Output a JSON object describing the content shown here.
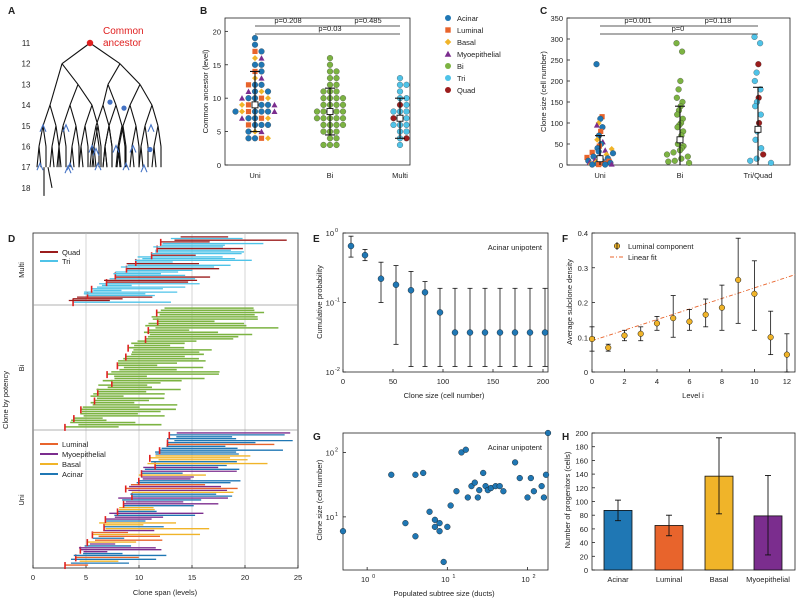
{
  "colors": {
    "acinar": "#1f77b4",
    "luminal": "#e8642c",
    "basal": "#f0b429",
    "myoepithelial": "#7b2d8e",
    "bi": "#7cb342",
    "tri": "#4fc3e8",
    "quad": "#9b1c1c",
    "tree_marker": "#4472c4",
    "ancestor": "#e02020"
  },
  "panels": {
    "A": {
      "letter": "A",
      "levels": [
        "11",
        "12",
        "13",
        "14",
        "15",
        "16",
        "17",
        "18"
      ],
      "ancestor_label": "Common ancestor"
    },
    "B": {
      "letter": "B",
      "ylabel": "Common ancestor (level)",
      "yticks": [
        "0",
        "5",
        "10",
        "15",
        "20"
      ],
      "categories": [
        "Uni",
        "Bi",
        "Multi"
      ],
      "pvalues": [
        "p=0.208",
        "p=0.03",
        "p=0.485"
      ],
      "legend": [
        "Acinar",
        "Luminal",
        "Basal",
        "Myoepithelial",
        "Bi",
        "Tri",
        "Quad"
      ]
    },
    "C": {
      "letter": "C",
      "ylabel": "Clone size (cell number)",
      "yticks": [
        "0",
        "50",
        "100",
        "150",
        "200",
        "250",
        "300",
        "350"
      ],
      "categories": [
        "Uni",
        "Bi",
        "Tri/Quad"
      ],
      "pvalues": [
        "p=0.001",
        "p=0",
        "p=0.118"
      ]
    },
    "D": {
      "letter": "D",
      "ylabel": "Clone by potency",
      "xlabel": "Clone span (levels)",
      "xticks": [
        "0",
        "5",
        "10",
        "15",
        "20",
        "25"
      ],
      "groups": [
        "Multi",
        "Bi",
        "Uni"
      ],
      "legend_multi": [
        "Quad",
        "Tri"
      ],
      "legend_uni": [
        "Luminal",
        "Myoepithelial",
        "Basal",
        "Acinar"
      ]
    },
    "E": {
      "letter": "E",
      "ylabel": "Cumulative probability",
      "xlabel": "Clone size (cell number)",
      "xticks": [
        "0",
        "50",
        "100",
        "150",
        "200"
      ],
      "yticks": [
        "10",
        "10",
        "10"
      ],
      "yexp": [
        "0",
        "-1",
        "-2"
      ],
      "label": "Acinar unipotent"
    },
    "F": {
      "letter": "F",
      "ylabel": "Average subclone density",
      "xlabel": "Level i",
      "xticks": [
        "0",
        "2",
        "4",
        "6",
        "8",
        "10",
        "12"
      ],
      "yticks": [
        "0",
        "0.1",
        "0.2",
        "0.3",
        "0.4"
      ],
      "legend": [
        "Luminal component",
        "Linear fit"
      ]
    },
    "G": {
      "letter": "G",
      "ylabel": "Clone size (cell number)",
      "xlabel": "Populated subtree size (ducts)",
      "xticks": [
        "10",
        "10",
        "10"
      ],
      "xexp": [
        "0",
        "1",
        "2"
      ],
      "yticks": [
        "10",
        "10"
      ],
      "yexp": [
        "1",
        "2"
      ],
      "label": "Acinar unipotent"
    },
    "H": {
      "letter": "H",
      "ylabel": "Number of progenitors (cells)",
      "yticks": [
        "0",
        "20",
        "40",
        "60",
        "80",
        "100",
        "120",
        "140",
        "160",
        "180",
        "200"
      ],
      "categories": [
        "Acinar",
        "Luminal",
        "Basal",
        "Myoepithelial"
      ]
    }
  },
  "chart_data": [
    {
      "panel": "B",
      "type": "scatter",
      "title": "",
      "xlabel": "",
      "ylabel": "Common ancestor (level)",
      "ylim": [
        0,
        22
      ],
      "categories": [
        "Uni",
        "Bi",
        "Multi"
      ],
      "summary": [
        {
          "category": "Uni",
          "median": 9,
          "q1": 7,
          "q3": 11,
          "mean": 9,
          "sd_low": 5,
          "sd_high": 14
        },
        {
          "category": "Bi",
          "median": 8,
          "q1": 7,
          "q3": 10,
          "mean": 8,
          "sd_low": 4.5,
          "sd_high": 11.5
        },
        {
          "category": "Multi",
          "median": 7,
          "q1": 5,
          "q3": 9,
          "mean": 7,
          "sd_low": 4,
          "sd_high": 10
        }
      ],
      "points": {
        "Uni": [
          19,
          18,
          17,
          17,
          16,
          16,
          15,
          15,
          14,
          14,
          13,
          13,
          12,
          12,
          12,
          11,
          11,
          11,
          11,
          10,
          10,
          10,
          10,
          10,
          9,
          9,
          9,
          9,
          9,
          9,
          8,
          8,
          8,
          8,
          8,
          8,
          8,
          7,
          7,
          7,
          7,
          7,
          6,
          6,
          6,
          6,
          5,
          5,
          5,
          4,
          4,
          4,
          4
        ],
        "Bi": [
          16,
          15,
          14,
          14,
          13,
          13,
          12,
          12,
          11,
          11,
          11,
          10,
          10,
          10,
          10,
          9,
          9,
          9,
          9,
          8,
          8,
          8,
          8,
          8,
          7,
          7,
          7,
          7,
          7,
          6,
          6,
          6,
          6,
          5,
          5,
          5,
          4,
          4,
          3,
          3,
          3
        ],
        "Multi": [
          13,
          12,
          12,
          11,
          10,
          10,
          9,
          9,
          8,
          8,
          8,
          7,
          7,
          7,
          6,
          6,
          6,
          5,
          5,
          4,
          4,
          3
        ]
      },
      "legend": [
        "Acinar",
        "Luminal",
        "Basal",
        "Myoepithelial",
        "Bi",
        "Tri",
        "Quad"
      ]
    },
    {
      "panel": "C",
      "type": "scatter",
      "title": "",
      "xlabel": "",
      "ylabel": "Clone size (cell number)",
      "ylim": [
        0,
        350
      ],
      "categories": [
        "Uni",
        "Bi",
        "Tri/Quad"
      ],
      "summary": [
        {
          "category": "Uni",
          "median": 15,
          "q1": 5,
          "q3": 30,
          "sd_high": 70
        },
        {
          "category": "Bi",
          "median": 60,
          "q1": 25,
          "q3": 100,
          "sd_high": 140
        },
        {
          "category": "Tri/Quad",
          "median": 85,
          "q1": 40,
          "q3": 130,
          "sd_high": 185
        }
      ],
      "points": {
        "Uni": [
          240,
          115,
          110,
          100,
          95,
          90,
          80,
          70,
          60,
          55,
          50,
          45,
          40,
          38,
          35,
          32,
          30,
          28,
          25,
          22,
          20,
          18,
          16,
          14,
          12,
          10,
          9,
          8,
          7,
          6,
          5,
          4,
          3,
          2,
          2,
          1,
          1,
          1
        ],
        "Bi": [
          290,
          270,
          200,
          180,
          160,
          150,
          140,
          130,
          120,
          110,
          100,
          95,
          90,
          80,
          70,
          60,
          50,
          45,
          40,
          35,
          30,
          25,
          20,
          15,
          10,
          8,
          5
        ],
        "Tri/Quad": [
          305,
          290,
          240,
          220,
          200,
          180,
          160,
          150,
          140,
          120,
          100,
          80,
          60,
          40,
          25,
          15,
          10,
          5
        ]
      }
    },
    {
      "panel": "D",
      "type": "bar",
      "title": "",
      "xlabel": "Clone span (levels)",
      "ylabel": "Clone by potency",
      "xlim": [
        0,
        25
      ],
      "groups": [
        "Multi",
        "Bi",
        "Uni"
      ],
      "series_note": "horizontal span bars per clone"
    },
    {
      "panel": "E",
      "type": "scatter",
      "title": "Acinar unipotent",
      "xlabel": "Clone size (cell number)",
      "ylabel": "Cumulative probability",
      "xlim": [
        0,
        205
      ],
      "ylim": [
        0.01,
        1
      ],
      "yscale": "log",
      "x": [
        8,
        22,
        38,
        53,
        68,
        82,
        97,
        112,
        127,
        142,
        157,
        172,
        187,
        202
      ],
      "y": [
        0.65,
        0.48,
        0.22,
        0.18,
        0.15,
        0.14,
        0.072,
        0.037,
        0.037,
        0.037,
        0.037,
        0.037,
        0.037,
        0.037
      ],
      "err_low": [
        0.45,
        0.4,
        0.1,
        0.025,
        0.012,
        0.012,
        0.012,
        0.012,
        0.012,
        0.012,
        0.012,
        0.012,
        0.012,
        0.012
      ],
      "err_high": [
        0.9,
        0.58,
        0.38,
        0.34,
        0.28,
        0.2,
        0.16,
        0.16,
        0.16,
        0.16,
        0.16,
        0.16,
        0.16,
        0.16
      ]
    },
    {
      "panel": "F",
      "type": "scatter",
      "title": "",
      "xlabel": "Level i",
      "ylabel": "Average subclone density",
      "xlim": [
        0,
        12.5
      ],
      "ylim": [
        0,
        0.4
      ],
      "series": [
        {
          "name": "Luminal component",
          "x": [
            0,
            1,
            2,
            3,
            4,
            5,
            6,
            7,
            8,
            9,
            10,
            11,
            12
          ],
          "y": [
            0.095,
            0.07,
            0.105,
            0.11,
            0.14,
            0.155,
            0.145,
            0.165,
            0.185,
            0.265,
            0.225,
            0.1,
            0.05
          ],
          "err_low": [
            0.06,
            0.06,
            0.09,
            0.09,
            0.12,
            0.1,
            0.12,
            0.13,
            0.12,
            0.14,
            0.12,
            0.05,
            0.0
          ],
          "err_high": [
            0.13,
            0.08,
            0.12,
            0.13,
            0.16,
            0.22,
            0.18,
            0.21,
            0.25,
            0.385,
            0.32,
            0.175,
            0.11
          ]
        }
      ],
      "fit": {
        "name": "Linear fit",
        "x": [
          0,
          12.5
        ],
        "y": [
          0.09,
          0.28
        ]
      },
      "legend": [
        "Luminal component",
        "Linear fit"
      ]
    },
    {
      "panel": "G",
      "type": "scatter",
      "title": "Acinar unipotent",
      "xlabel": "Populated subtree size (ducts)",
      "ylabel": "Clone size (cell number)",
      "xscale": "log",
      "yscale": "log",
      "xlim": [
        0.5,
        180
      ],
      "ylim": [
        1.5,
        200
      ],
      "x": [
        0.5,
        2,
        3,
        4,
        4,
        5,
        6,
        7,
        7,
        8,
        8,
        9,
        10,
        11,
        13,
        15,
        17,
        18,
        20,
        22,
        24,
        25,
        28,
        30,
        32,
        35,
        40,
        45,
        50,
        70,
        80,
        100,
        110,
        120,
        150,
        160,
        170,
        180
      ],
      "y": [
        6,
        45,
        8,
        45,
        5,
        48,
        12,
        9,
        7,
        6,
        8,
        2,
        7,
        15,
        25,
        100,
        110,
        20,
        30,
        34,
        20,
        26,
        48,
        30,
        26,
        28,
        30,
        30,
        25,
        70,
        40,
        20,
        40,
        25,
        30,
        20,
        45,
        210
      ]
    },
    {
      "panel": "H",
      "type": "bar",
      "title": "",
      "xlabel": "",
      "ylabel": "Number of progenitors (cells)",
      "ylim": [
        0,
        200
      ],
      "categories": [
        "Acinar",
        "Luminal",
        "Basal",
        "Myoepithelial"
      ],
      "values": [
        87,
        65,
        137,
        79
      ],
      "err_low": [
        72,
        50,
        82,
        22
      ],
      "err_high": [
        102,
        80,
        193,
        138
      ]
    }
  ]
}
